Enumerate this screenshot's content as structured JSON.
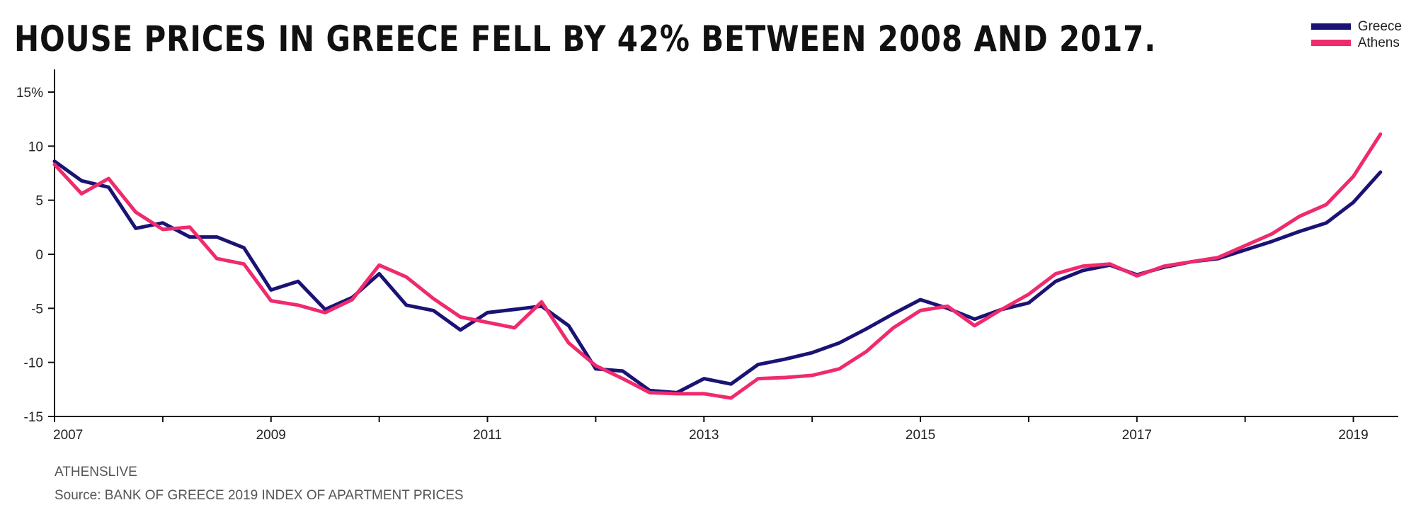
{
  "title": "HOUSE PRICES IN GREECE FELL BY 42% BETWEEN 2008 AND 2017.",
  "brand": "ATHENSLIVE",
  "source": "Source: BANK OF GREECE 2019 INDEX OF APARTMENT PRICES",
  "colors": {
    "greece": "#1a1375",
    "athens": "#ef2a6d",
    "axis": "#111111"
  },
  "chart_data": {
    "type": "line",
    "xlim": [
      2007,
      2019.33
    ],
    "ylim": [
      -15,
      15
    ],
    "y_ticks": [
      {
        "value": 15,
        "label": "15%"
      },
      {
        "value": 10,
        "label": "10"
      },
      {
        "value": 5,
        "label": "5"
      },
      {
        "value": 0,
        "label": "0"
      },
      {
        "value": -5,
        "label": "-5"
      },
      {
        "value": -10,
        "label": "-10"
      },
      {
        "value": -15,
        "label": "-15"
      }
    ],
    "x_ticks": [
      2007,
      2008,
      2009,
      2010,
      2011,
      2012,
      2013,
      2014,
      2015,
      2016,
      2017,
      2018,
      2019
    ],
    "x_tick_labels": [
      {
        "value": 2007,
        "label": "2007"
      },
      {
        "value": 2009,
        "label": "2009"
      },
      {
        "value": 2011,
        "label": "2011"
      },
      {
        "value": 2013,
        "label": "2013"
      },
      {
        "value": 2015,
        "label": "2015"
      },
      {
        "value": 2017,
        "label": "2017"
      },
      {
        "value": 2019,
        "label": "2019"
      }
    ],
    "x": [
      2007.0,
      2007.25,
      2007.5,
      2007.75,
      2008.0,
      2008.25,
      2008.5,
      2008.75,
      2009.0,
      2009.25,
      2009.5,
      2009.75,
      2010.0,
      2010.25,
      2010.5,
      2010.75,
      2011.0,
      2011.25,
      2011.5,
      2011.75,
      2012.0,
      2012.25,
      2012.5,
      2012.75,
      2013.0,
      2013.25,
      2013.5,
      2013.75,
      2014.0,
      2014.25,
      2014.5,
      2014.75,
      2015.0,
      2015.25,
      2015.5,
      2015.75,
      2016.0,
      2016.25,
      2016.5,
      2016.75,
      2017.0,
      2017.25,
      2017.5,
      2017.75,
      2018.0,
      2018.25,
      2018.5,
      2018.75,
      2019.0,
      2019.25
    ],
    "series": [
      {
        "name": "Greece",
        "color": "#1a1375",
        "values": [
          8.6,
          6.8,
          6.2,
          2.4,
          2.9,
          1.6,
          1.6,
          0.6,
          -3.3,
          -2.5,
          -5.1,
          -4.0,
          -1.8,
          -4.7,
          -5.2,
          -7.0,
          -5.4,
          -5.1,
          -4.8,
          -6.6,
          -10.6,
          -10.8,
          -12.6,
          -12.8,
          -11.5,
          -12.0,
          -10.2,
          -9.7,
          -9.1,
          -8.2,
          -6.9,
          -5.5,
          -4.2,
          -5.0,
          -6.0,
          -5.1,
          -4.5,
          -2.5,
          -1.5,
          -1.0,
          -1.9,
          -1.2,
          -0.7,
          -0.4,
          0.4,
          1.2,
          2.1,
          2.9,
          4.8,
          7.6
        ]
      },
      {
        "name": "Athens",
        "color": "#ef2a6d",
        "values": [
          8.3,
          5.6,
          7.0,
          3.9,
          2.3,
          2.5,
          -0.4,
          -0.9,
          -4.3,
          -4.7,
          -5.4,
          -4.2,
          -1.0,
          -2.1,
          -4.1,
          -5.8,
          -6.3,
          -6.8,
          -4.4,
          -8.2,
          -10.3,
          -11.5,
          -12.8,
          -12.9,
          -12.9,
          -13.3,
          -11.5,
          -11.4,
          -11.2,
          -10.6,
          -9.0,
          -6.8,
          -5.2,
          -4.8,
          -6.6,
          -5.1,
          -3.7,
          -1.8,
          -1.1,
          -0.9,
          -2.0,
          -1.1,
          -0.7,
          -0.3,
          0.8,
          1.9,
          3.5,
          4.6,
          7.2,
          11.1
        ]
      }
    ]
  }
}
